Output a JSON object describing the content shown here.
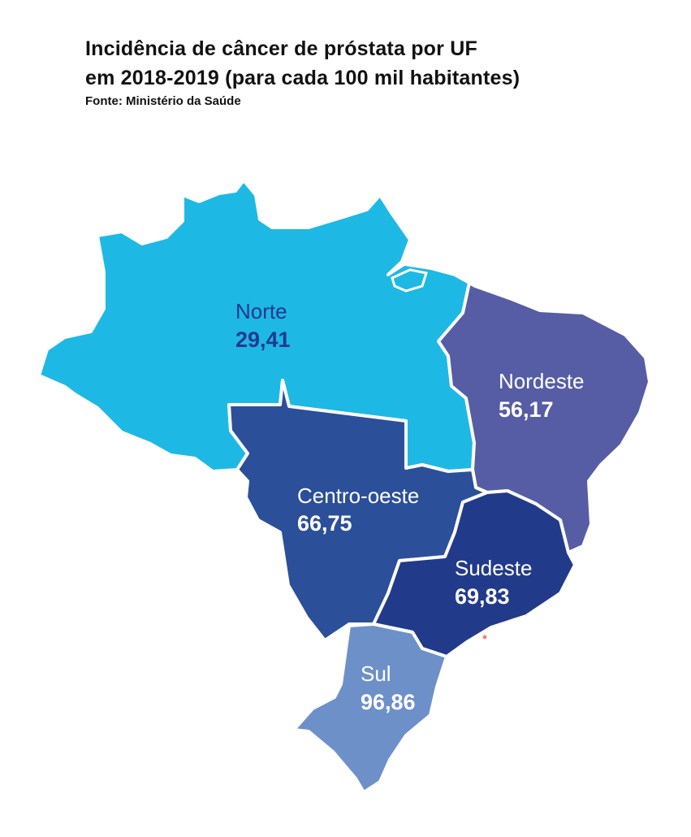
{
  "header": {
    "title_line1": "Incidência de câncer de próstata por UF",
    "title_line2": "em 2018-2019 (para cada 100 mil habitantes)",
    "source": "Fonte: Ministério da Saúde"
  },
  "map": {
    "regions": [
      {
        "key": "norte",
        "name": "Norte",
        "value": "29,41",
        "color": "#1eb8e5",
        "label_color": "#1f3b8f"
      },
      {
        "key": "nordeste",
        "name": "Nordeste",
        "value": "56,17",
        "color": "#565da4",
        "label_color": "#ffffff"
      },
      {
        "key": "centrooeste",
        "name": "Centro-oeste",
        "value": "66,75",
        "color": "#2c4f9a",
        "label_color": "#ffffff"
      },
      {
        "key": "sudeste",
        "name": "Sudeste",
        "value": "69,83",
        "color": "#223a8a",
        "label_color": "#ffffff"
      },
      {
        "key": "sul",
        "name": "Sul",
        "value": "96,86",
        "color": "#6e90c9",
        "label_color": "#ffffff"
      }
    ]
  }
}
